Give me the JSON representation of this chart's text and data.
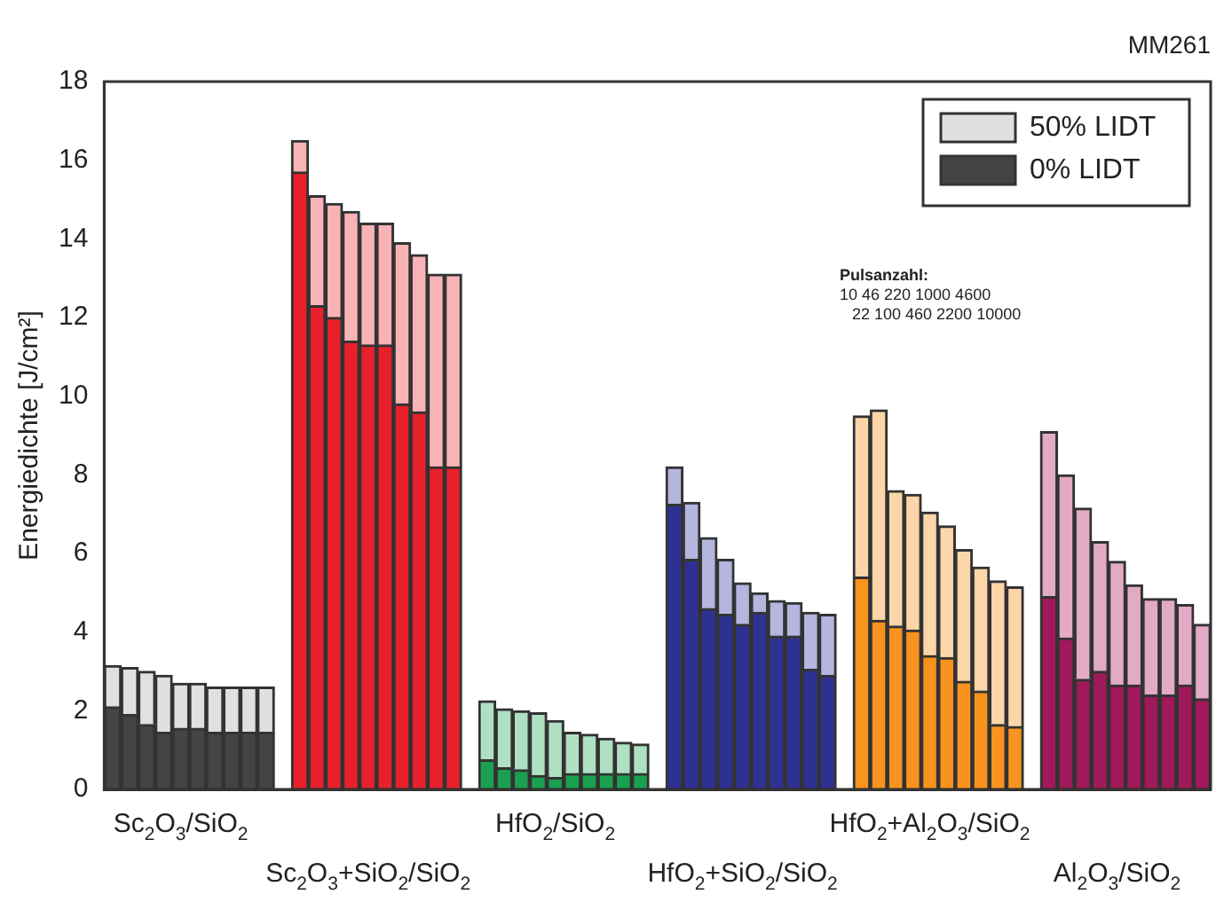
{
  "chart_data": {
    "type": "bar",
    "ylabel": "Energiedichte [J/cm²]",
    "categories": [
      null,
      null,
      null,
      null,
      "Sc$_{2}$O$_{3}$/SiO$_{2}$",
      null,
      null,
      null,
      null,
      null,
      null,
      null,
      null,
      null,
      null,
      "Sc$_{2}$O$_{3}$+SiO$_{2}$/SiO$_{2}$",
      null,
      null,
      null,
      null,
      null,
      null,
      null,
      null,
      null,
      null,
      "HfO$_{2}$/SiO$_{2}$",
      null,
      null,
      null,
      null,
      null,
      null,
      null,
      null,
      null,
      null,
      "HfO$_{2}$+SiO$_{2}$/SiO$_{2}$",
      null,
      null,
      null,
      null,
      null,
      null,
      null,
      null,
      null,
      null,
      "HfO$_{2}$+Al$_{2}$O$_{3}$/SiO$_{2}$",
      null,
      null,
      null,
      null,
      null,
      null,
      null,
      null,
      null,
      null,
      "Al$_{2}$O$_{3}$/SiO$_{2}$",
      null,
      null,
      null,
      null,
      null
    ],
    "series": [
      {
        "name": "0% LIDT",
        "color": "#444444",
        "values": [
          2.1,
          1.9,
          1.65,
          1.45,
          1.55,
          1.55,
          1.45,
          1.45,
          1.45,
          1.45,
          null,
          15.7,
          12.3,
          12.0,
          11.4,
          11.3,
          11.3,
          9.8,
          9.6,
          8.2,
          8.2,
          null,
          0.75,
          0.55,
          0.5,
          0.35,
          0.3,
          0.4,
          0.4,
          0.4,
          0.4,
          0.4,
          null,
          7.25,
          5.85,
          4.6,
          4.45,
          4.2,
          4.5,
          3.9,
          3.9,
          3.05,
          2.9,
          null,
          5.4,
          4.3,
          4.15,
          4.05,
          3.4,
          3.35,
          2.75,
          2.5,
          1.65,
          1.6,
          null,
          4.9,
          3.85,
          2.8,
          3.0,
          2.65,
          2.65,
          2.4,
          2.4,
          2.65,
          2.3
        ],
        "colors": [
          "#444444",
          "#444444",
          "#444444",
          "#444444",
          "#444444",
          "#444444",
          "#444444",
          "#444444",
          "#444444",
          "#444444",
          null,
          "#e8202a",
          "#e8202a",
          "#e8202a",
          "#e8202a",
          "#e8202a",
          "#e8202a",
          "#e8202a",
          "#e8202a",
          "#e8202a",
          "#e8202a",
          null,
          "#1aa050",
          "#1aa050",
          "#1aa050",
          "#1aa050",
          "#1aa050",
          "#1aa050",
          "#1aa050",
          "#1aa050",
          "#1aa050",
          "#1aa050",
          null,
          "#2e3192",
          "#2e3192",
          "#2e3192",
          "#2e3192",
          "#2e3192",
          "#2e3192",
          "#2e3192",
          "#2e3192",
          "#2e3192",
          "#2e3192",
          null,
          "#f7931e",
          "#f7931e",
          "#f7931e",
          "#f7931e",
          "#f7931e",
          "#f7931e",
          "#f7931e",
          "#f7931e",
          "#f7931e",
          "#f7931e",
          null,
          "#a0195a",
          "#a0195a",
          "#a0195a",
          "#a0195a",
          "#a0195a",
          "#a0195a",
          "#a0195a",
          "#a0195a",
          "#a0195a",
          "#a0195a"
        ]
      },
      {
        "name": "50% LIDT",
        "color": "#e0e0e0",
        "values": [
          1.05,
          1.2,
          1.35,
          1.45,
          1.15,
          1.15,
          1.15,
          1.15,
          1.15,
          1.15,
          null,
          0.8,
          2.8,
          2.9,
          3.3,
          3.1,
          3.1,
          4.1,
          4.0,
          4.9,
          4.9,
          null,
          1.5,
          1.5,
          1.5,
          1.6,
          1.45,
          1.05,
          1.0,
          0.9,
          0.8,
          0.75,
          null,
          0.95,
          1.45,
          1.8,
          1.4,
          1.05,
          0.5,
          0.9,
          0.85,
          1.45,
          1.55,
          null,
          4.1,
          5.35,
          3.45,
          3.45,
          3.65,
          3.35,
          3.35,
          3.15,
          3.65,
          3.55,
          null,
          4.2,
          4.15,
          4.35,
          3.3,
          3.15,
          2.55,
          2.45,
          2.45,
          2.05,
          1.9
        ],
        "colors": [
          "#e0e0e0",
          "#e0e0e0",
          "#e0e0e0",
          "#e0e0e0",
          "#e0e0e0",
          "#e0e0e0",
          "#e0e0e0",
          "#e0e0e0",
          "#e0e0e0",
          "#e0e0e0",
          null,
          "#f7b3b5",
          "#f7b3b5",
          "#f7b3b5",
          "#f7b3b5",
          "#f7b3b5",
          "#f7b3b5",
          "#f7b3b5",
          "#f7b3b5",
          "#f7b3b5",
          "#f7b3b5",
          null,
          "#aee0c2",
          "#aee0c2",
          "#aee0c2",
          "#aee0c2",
          "#aee0c2",
          "#aee0c2",
          "#aee0c2",
          "#aee0c2",
          "#aee0c2",
          "#aee0c2",
          null,
          "#b4b6e0",
          "#b4b6e0",
          "#b4b6e0",
          "#b4b6e0",
          "#b4b6e0",
          "#b4b6e0",
          "#b4b6e0",
          "#b4b6e0",
          "#b4b6e0",
          "#b4b6e0",
          null,
          "#fcd6a8",
          "#fcd6a8",
          "#fcd6a8",
          "#fcd6a8",
          "#fcd6a8",
          "#fcd6a8",
          "#fcd6a8",
          "#fcd6a8",
          "#fcd6a8",
          "#fcd6a8",
          null,
          "#e2aac4",
          "#e2aac4",
          "#e2aac4",
          "#e2aac4",
          "#e2aac4",
          "#e2aac4",
          "#e2aac4",
          "#e2aac4",
          "#e2aac4",
          "#e2aac4"
        ]
      }
    ],
    "stacked": true,
    "ylim": [
      0,
      18
    ],
    "yticks": [
      0,
      2,
      4,
      6,
      8,
      10,
      12,
      14,
      16,
      18
    ],
    "grid": false,
    "legend": "top right",
    "annotations": [
      "MM261",
      "Pulsanzahl:",
      "10 46 220 1000 4600",
      "22 100 460 2200 10000"
    ]
  }
}
